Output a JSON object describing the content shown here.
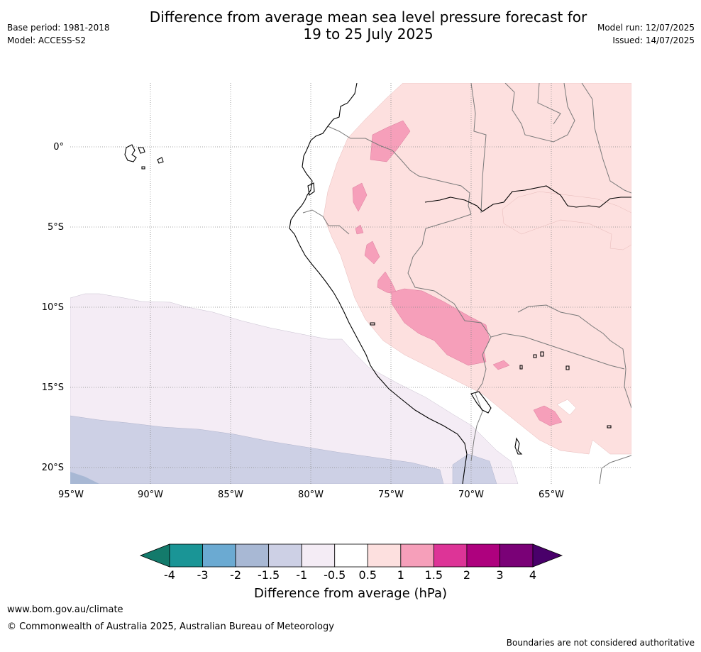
{
  "header": {
    "title_line1": "Difference from average mean sea level pressure forecast for",
    "title_line2": "19 to 25 July 2025",
    "base_period": "Base period: 1981-2018",
    "model": "Model: ACCESS-S2",
    "model_run": "Model run: 12/07/2025",
    "issued": "Issued: 14/07/2025"
  },
  "map": {
    "lat_labels": [
      "0°",
      "5°S",
      "10°S",
      "15°S",
      "20°S"
    ],
    "lon_labels": [
      "95°W",
      "90°W",
      "85°W",
      "80°W",
      "75°W",
      "70°W",
      "65°W"
    ],
    "graticule": "dotted"
  },
  "colorbar": {
    "ticks": [
      "-4",
      "-3",
      "-2",
      "-1.5",
      "-1",
      "-0.5",
      "0.5",
      "1",
      "1.5",
      "2",
      "3",
      "4"
    ],
    "colors": [
      "#137a6b",
      "#1a9596",
      "#6baad2",
      "#a8b8d4",
      "#cdd0e5",
      "#f4ecf5",
      "#ffffff",
      "#fde0df",
      "#f69fba",
      "#dd3497",
      "#ae017e",
      "#7a0177",
      "#49006a"
    ],
    "label": "Difference from average (hPa)"
  },
  "footer": {
    "url": "www.bom.gov.au/climate",
    "copyright": "© Commonwealth of Australia 2025, Australian Bureau of Meteorology",
    "note": "Boundaries are not considered authoritative"
  }
}
